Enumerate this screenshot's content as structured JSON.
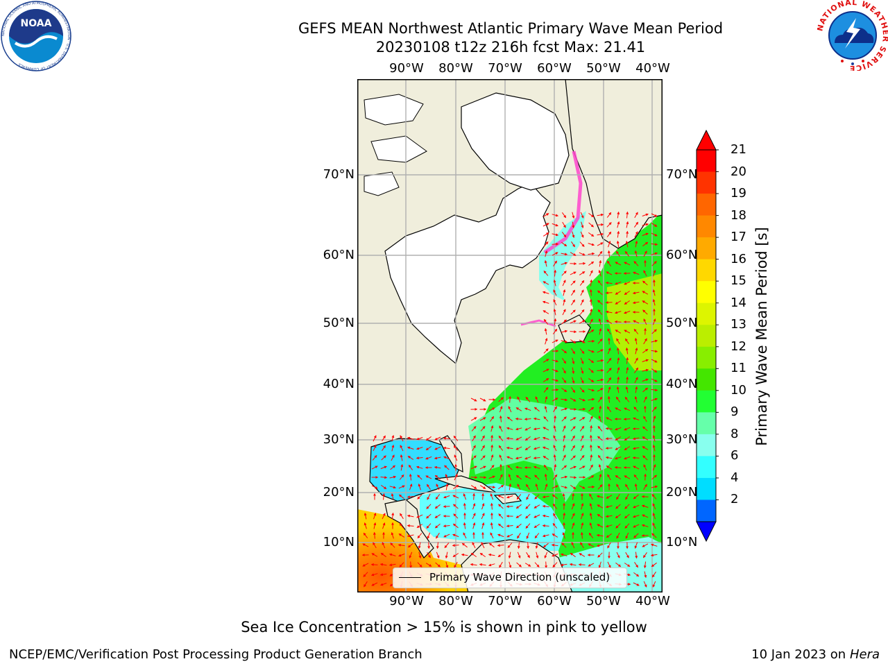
{
  "title": {
    "line1": "GEFS MEAN Northwest Atlantic Primary Wave Mean Period",
    "line2": "20230108 t12z 216h fcst   Max: 21.41"
  },
  "map": {
    "lon_labels": [
      "90°W",
      "80°W",
      "70°W",
      "60°W",
      "50°W",
      "40°W"
    ],
    "lat_labels": [
      "70°N",
      "60°N",
      "50°N",
      "40°N",
      "30°N",
      "20°N",
      "10°N"
    ],
    "legend_label": "Primary Wave Direction (unscaled)",
    "colors": {
      "land": "#f0eedc",
      "ice_free_land": "#ffffff",
      "grid": "#b0b0b0",
      "arrow": "#ff0000"
    }
  },
  "colorbar": {
    "title": "Primary Wave Mean Period [s]",
    "ticks": [
      "21",
      "20",
      "19",
      "18",
      "17",
      "16",
      "15",
      "14",
      "13",
      "12",
      "11",
      "10",
      "9",
      "8",
      "6",
      "4",
      "2"
    ],
    "colors": [
      "#ff0000",
      "#ff3300",
      "#ff6600",
      "#ff8800",
      "#ffaa00",
      "#ffd800",
      "#ffff00",
      "#ddf500",
      "#bbee00",
      "#88ee00",
      "#44e600",
      "#22ff33",
      "#66ffaa",
      "#88ffee",
      "#33ffff",
      "#00ddff",
      "#0066ff"
    ],
    "under_color": "#0000ff",
    "over_color": "#ff0000"
  },
  "note": "Sea Ice Concentration > 15% is shown in pink to yellow",
  "credits": {
    "left": "NCEP/EMC/Verification Post Processing Product Generation Branch",
    "right_prefix": "10 Jan 2023 on ",
    "right_machine": "Hera"
  },
  "logos": {
    "noaa": {
      "text": "NOAA",
      "ring_text": "NATIONAL OCEANIC AND ATMOSPHERIC ADMINISTRATION · U.S. DEPARTMENT OF COMMERCE"
    },
    "nws": {
      "ring_text": "NATIONAL WEATHER SERVICE"
    }
  }
}
